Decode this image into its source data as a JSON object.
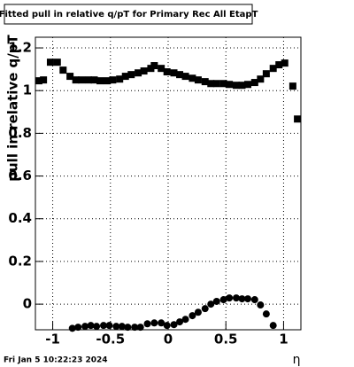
{
  "chart_data": {
    "type": "scatter",
    "title": "Fitted pull in relative q/pT for Primary Rec All EtapT",
    "y_label": "pull in relative q/pT",
    "x_label": "η",
    "timestamp": "Fri Jan  5 10:22:23 2024",
    "xlim": [
      -1.15,
      1.15
    ],
    "ylim": [
      -0.12,
      1.25
    ],
    "xticks": [
      -1,
      -0.5,
      0,
      0.5,
      1
    ],
    "yticks": [
      0,
      0.2,
      0.4,
      0.6,
      0.8,
      1,
      1.2
    ],
    "grid": true,
    "series": [
      {
        "marker": "square",
        "color": "#000000",
        "x": [
          -1.12,
          -1.08,
          -1.02,
          -0.96,
          -0.91,
          -0.85,
          -0.8,
          -0.75,
          -0.69,
          -0.64,
          -0.59,
          -0.53,
          -0.48,
          -0.42,
          -0.37,
          -0.32,
          -0.26,
          -0.21,
          -0.15,
          -0.12,
          -0.06,
          -0.01,
          0.05,
          0.1,
          0.15,
          0.21,
          0.26,
          0.32,
          0.37,
          0.42,
          0.48,
          0.53,
          0.59,
          0.64,
          0.69,
          0.75,
          0.8,
          0.85,
          0.91,
          0.96,
          1.01,
          1.08,
          1.12
        ],
        "values": [
          1.046,
          1.05,
          1.133,
          1.133,
          1.096,
          1.067,
          1.05,
          1.05,
          1.05,
          1.05,
          1.046,
          1.046,
          1.05,
          1.054,
          1.067,
          1.075,
          1.083,
          1.092,
          1.104,
          1.117,
          1.104,
          1.088,
          1.083,
          1.075,
          1.067,
          1.058,
          1.05,
          1.042,
          1.033,
          1.033,
          1.033,
          1.029,
          1.025,
          1.025,
          1.029,
          1.038,
          1.054,
          1.079,
          1.104,
          1.121,
          1.129,
          1.021,
          0.867
        ]
      },
      {
        "marker": "circle",
        "color": "#000000",
        "x": [
          -0.83,
          -0.78,
          -0.72,
          -0.67,
          -0.62,
          -0.56,
          -0.51,
          -0.45,
          -0.4,
          -0.35,
          -0.29,
          -0.24,
          -0.18,
          -0.12,
          -0.06,
          -0.01,
          0.05,
          0.1,
          0.15,
          0.21,
          0.26,
          0.32,
          0.37,
          0.42,
          0.48,
          0.53,
          0.59,
          0.64,
          0.69,
          0.75,
          0.8,
          0.85,
          0.91
        ],
        "values": [
          -0.113,
          -0.108,
          -0.104,
          -0.1,
          -0.104,
          -0.1,
          -0.1,
          -0.104,
          -0.104,
          -0.108,
          -0.108,
          -0.108,
          -0.092,
          -0.088,
          -0.088,
          -0.1,
          -0.096,
          -0.083,
          -0.071,
          -0.054,
          -0.038,
          -0.021,
          0,
          0.013,
          0.021,
          0.029,
          0.029,
          0.025,
          0.025,
          0.021,
          -0.004,
          -0.046,
          -0.1
        ]
      }
    ]
  }
}
